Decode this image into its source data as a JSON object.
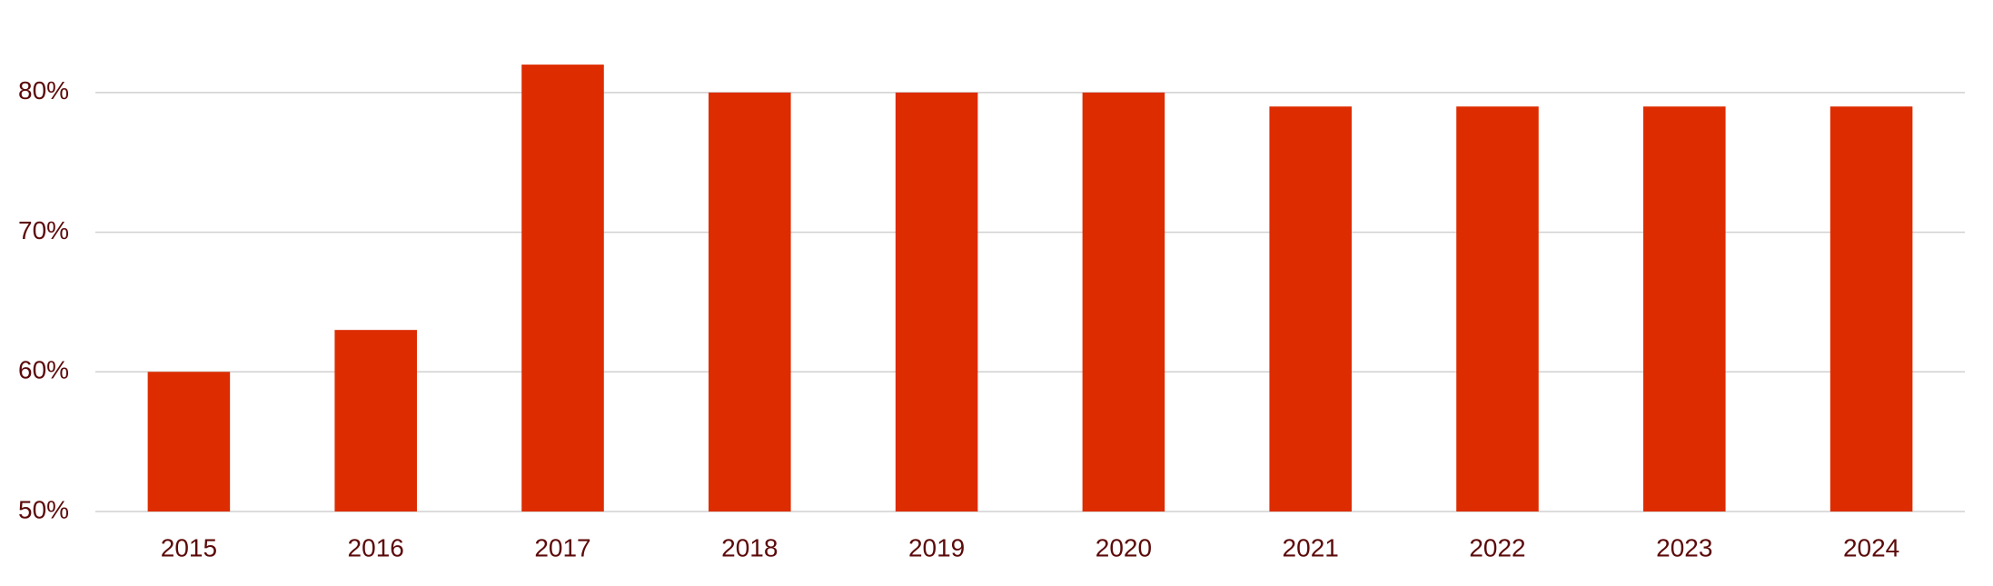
{
  "chart_data": {
    "type": "bar",
    "categories": [
      "2015",
      "2016",
      "2017",
      "2018",
      "2019",
      "2020",
      "2021",
      "2022",
      "2023",
      "2024"
    ],
    "values": [
      60,
      63,
      82,
      80,
      80,
      80,
      79,
      79,
      79,
      79
    ],
    "color": "#dd2c00",
    "ylim": [
      50,
      85
    ],
    "yticks": [
      {
        "value": 50,
        "label": "50%"
      },
      {
        "value": 60,
        "label": "60%"
      },
      {
        "value": 70,
        "label": "70%"
      },
      {
        "value": 80,
        "label": "80%"
      }
    ],
    "grid": true
  }
}
